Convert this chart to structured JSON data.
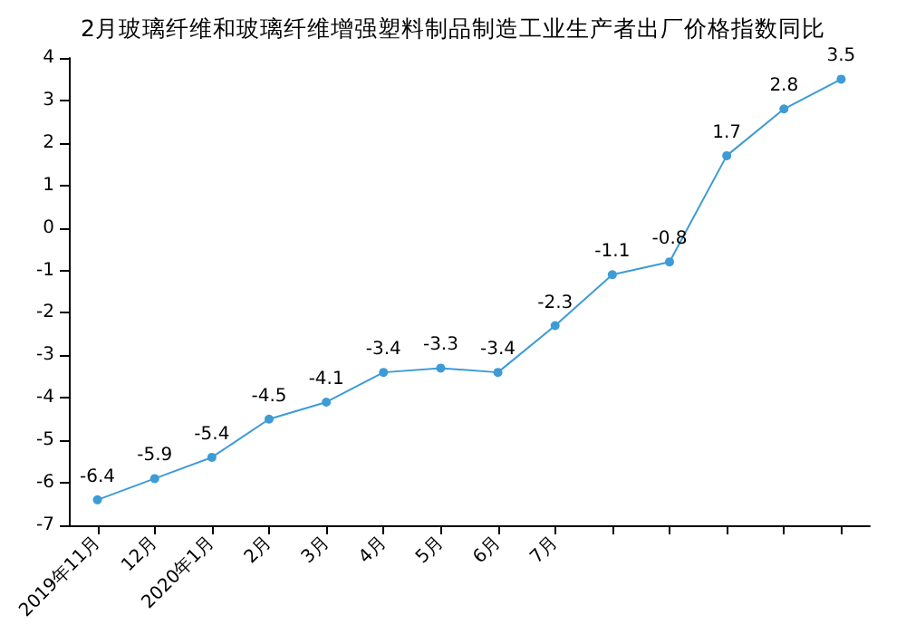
{
  "chart_data": {
    "type": "line",
    "title": "2月玻璃纤维和玻璃纤维增强塑料制品制造工业生产者出厂价格指数同比",
    "categories": [
      "2019年11月",
      "12月",
      "2020年1月",
      "2月",
      "3月",
      "4月",
      "5月",
      "6月",
      "7月",
      null,
      null,
      null,
      null,
      null
    ],
    "series": [
      {
        "color": "#3d9bd6",
        "values": [
          -6.4,
          -5.9,
          -5.4,
          -4.5,
          -4.1,
          -3.4,
          -3.3,
          -3.4,
          -2.3,
          -1.1,
          -0.8,
          1.7,
          2.8,
          3.5
        ]
      }
    ],
    "ylim": [
      -7,
      4
    ],
    "yticks": [
      -7,
      -6,
      -5,
      -4,
      -3,
      -2,
      -1,
      0,
      1,
      2,
      3,
      4
    ],
    "grid": false,
    "marker": "circle",
    "data_labels": true
  }
}
